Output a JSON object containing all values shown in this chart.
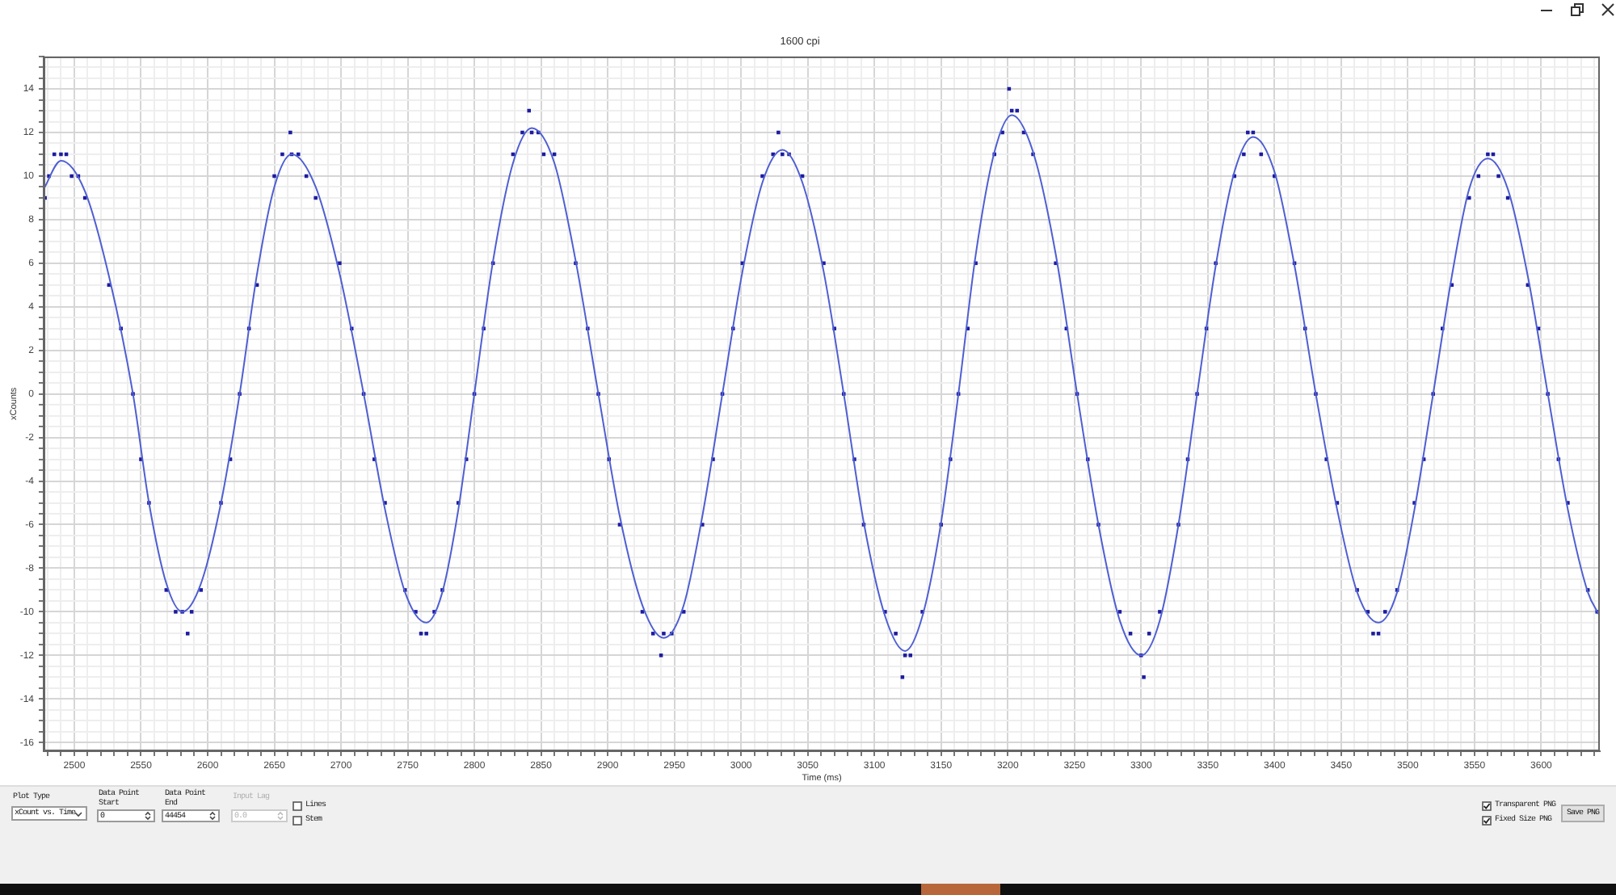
{
  "chart_data": {
    "type": "scatter",
    "subtitle": "1600 cpi",
    "xlabel": "Time (ms)",
    "ylabel": "xCounts",
    "annotations": [
      "Plot Type",
      "xCount vs. Time",
      "Data Point Start",
      "0",
      "Data Point End",
      "44454",
      "Input Lag",
      "0.0",
      "Lines",
      "Stem",
      "Transparent PNG",
      "Fixed Size PNG",
      "Save PNG"
    ],
    "xlim": [
      2477,
      3644
    ],
    "ylim": [
      -16.4,
      15.5
    ],
    "xticks": [
      {
        "value": 2480,
        "label": null
      },
      {
        "value": 2490,
        "label": null
      },
      2500,
      {
        "value": 2510,
        "label": null
      },
      {
        "value": 2520,
        "label": null
      },
      {
        "value": 2530,
        "label": null
      },
      {
        "value": 2540,
        "label": null
      },
      2550,
      {
        "value": 2560,
        "label": null
      },
      {
        "value": 2570,
        "label": null
      },
      {
        "value": 2580,
        "label": null
      },
      {
        "value": 2590,
        "label": null
      },
      2600,
      {
        "value": 2610,
        "label": null
      },
      {
        "value": 2620,
        "label": null
      },
      {
        "value": 2630,
        "label": null
      },
      {
        "value": 2640,
        "label": null
      },
      2650,
      {
        "value": 2660,
        "label": null
      },
      {
        "value": 2670,
        "label": null
      },
      {
        "value": 2680,
        "label": null
      },
      {
        "value": 2690,
        "label": null
      },
      2700,
      {
        "value": 2710,
        "label": null
      },
      {
        "value": 2720,
        "label": null
      },
      {
        "value": 2730,
        "label": null
      },
      {
        "value": 2740,
        "label": null
      },
      2750,
      {
        "value": 2760,
        "label": null
      },
      {
        "value": 2770,
        "label": null
      },
      {
        "value": 2780,
        "label": null
      },
      {
        "value": 2790,
        "label": null
      },
      2800,
      {
        "value": 2810,
        "label": null
      },
      {
        "value": 2820,
        "label": null
      },
      {
        "value": 2830,
        "label": null
      },
      {
        "value": 2840,
        "label": null
      },
      2850,
      {
        "value": 2860,
        "label": null
      },
      {
        "value": 2870,
        "label": null
      },
      {
        "value": 2880,
        "label": null
      },
      {
        "value": 2890,
        "label": null
      },
      2900,
      {
        "value": 2910,
        "label": null
      },
      {
        "value": 2920,
        "label": null
      },
      {
        "value": 2930,
        "label": null
      },
      {
        "value": 2940,
        "label": null
      },
      2950,
      {
        "value": 2960,
        "label": null
      },
      {
        "value": 2970,
        "label": null
      },
      {
        "value": 2980,
        "label": null
      },
      {
        "value": 2990,
        "label": null
      },
      3000,
      {
        "value": 3010,
        "label": null
      },
      {
        "value": 3020,
        "label": null
      },
      {
        "value": 3030,
        "label": null
      },
      {
        "value": 3040,
        "label": null
      },
      3050,
      {
        "value": 3060,
        "label": null
      },
      {
        "value": 3070,
        "label": null
      },
      {
        "value": 3080,
        "label": null
      },
      {
        "value": 3090,
        "label": null
      },
      3100,
      {
        "value": 3110,
        "label": null
      },
      {
        "value": 3120,
        "label": null
      },
      {
        "value": 3130,
        "label": null
      },
      {
        "value": 3140,
        "label": null
      },
      3150,
      {
        "value": 3160,
        "label": null
      },
      {
        "value": 3170,
        "label": null
      },
      {
        "value": 3180,
        "label": null
      },
      {
        "value": 3190,
        "label": null
      },
      3200,
      {
        "value": 3210,
        "label": null
      },
      {
        "value": 3220,
        "label": null
      },
      {
        "value": 3230,
        "label": null
      },
      {
        "value": 3240,
        "label": null
      },
      3250,
      {
        "value": 3260,
        "label": null
      },
      {
        "value": 3270,
        "label": null
      },
      {
        "value": 3280,
        "label": null
      },
      {
        "value": 3290,
        "label": null
      },
      3300,
      {
        "value": 3310,
        "label": null
      },
      {
        "value": 3320,
        "label": null
      },
      {
        "value": 3330,
        "label": null
      },
      {
        "value": 3340,
        "label": null
      },
      3350,
      {
        "value": 3360,
        "label": null
      },
      {
        "value": 3370,
        "label": null
      },
      {
        "value": 3380,
        "label": null
      },
      {
        "value": 3390,
        "label": null
      },
      3400,
      {
        "value": 3410,
        "label": null
      },
      {
        "value": 3420,
        "label": null
      },
      {
        "value": 3430,
        "label": null
      },
      {
        "value": 3440,
        "label": null
      },
      3450,
      {
        "value": 3460,
        "label": null
      },
      {
        "value": 3470,
        "label": null
      },
      {
        "value": 3480,
        "label": null
      },
      {
        "value": 3490,
        "label": null
      },
      3500,
      {
        "value": 3510,
        "label": null
      },
      {
        "value": 3520,
        "label": null
      },
      {
        "value": 3530,
        "label": null
      },
      {
        "value": 3540,
        "label": null
      },
      3550,
      {
        "value": 3560,
        "label": null
      },
      {
        "value": 3570,
        "label": null
      },
      {
        "value": 3580,
        "label": null
      },
      {
        "value": 3590,
        "label": null
      },
      3600,
      {
        "value": 3610,
        "label": null
      },
      {
        "value": 3620,
        "label": null
      },
      {
        "value": 3630,
        "label": null
      },
      {
        "value": 3640,
        "label": null
      }
    ],
    "yticks": [
      -16,
      {
        "value": -15.5,
        "label": null
      },
      {
        "value": -15,
        "label": null
      },
      {
        "value": -14.5,
        "label": null
      },
      -14,
      {
        "value": -13.5,
        "label": null
      },
      {
        "value": -13,
        "label": null
      },
      {
        "value": -12.5,
        "label": null
      },
      -12,
      {
        "value": -11.5,
        "label": null
      },
      {
        "value": -11,
        "label": null
      },
      {
        "value": -10.5,
        "label": null
      },
      -10,
      {
        "value": -9.5,
        "label": null
      },
      {
        "value": -9,
        "label": null
      },
      {
        "value": -8.5,
        "label": null
      },
      -8,
      {
        "value": -7.5,
        "label": null
      },
      {
        "value": -7,
        "label": null
      },
      {
        "value": -6.5,
        "label": null
      },
      -6,
      {
        "value": -5.5,
        "label": null
      },
      {
        "value": -5,
        "label": null
      },
      {
        "value": -4.5,
        "label": null
      },
      -4,
      {
        "value": -3.5,
        "label": null
      },
      {
        "value": -3,
        "label": null
      },
      {
        "value": -2.5,
        "label": null
      },
      -2,
      {
        "value": -1.5,
        "label": null
      },
      {
        "value": -1,
        "label": null
      },
      {
        "value": -0.5,
        "label": null
      },
      0,
      {
        "value": 0.5,
        "label": null
      },
      {
        "value": 1,
        "label": null
      },
      {
        "value": 1.5,
        "label": null
      },
      2,
      {
        "value": 2.5,
        "label": null
      },
      {
        "value": 3,
        "label": null
      },
      {
        "value": 3.5,
        "label": null
      },
      4,
      {
        "value": 4.5,
        "label": null
      },
      {
        "value": 5,
        "label": null
      },
      {
        "value": 5.5,
        "label": null
      },
      6,
      {
        "value": 6.5,
        "label": null
      },
      {
        "value": 7,
        "label": null
      },
      {
        "value": 7.5,
        "label": null
      },
      8,
      {
        "value": 8.5,
        "label": null
      },
      {
        "value": 9,
        "label": null
      },
      {
        "value": 9.5,
        "label": null
      },
      10,
      {
        "value": 10.5,
        "label": null
      },
      {
        "value": 11,
        "label": null
      },
      {
        "value": 11.5,
        "label": null
      },
      12,
      {
        "value": 12.5,
        "label": null
      },
      {
        "value": 13,
        "label": null
      },
      {
        "value": 13.5,
        "label": null
      },
      14,
      {
        "value": 14.5,
        "label": null
      },
      {
        "value": 15,
        "label": null
      },
      {
        "value": 15.5,
        "label": null
      }
    ],
    "grid": true,
    "marker": "square",
    "series": [
      {
        "color": "#1c1ca0",
        "x": [
          2478,
          2481,
          2485,
          2490,
          2494,
          2498,
          2503,
          2508,
          2526,
          2535,
          2544,
          2550,
          2556,
          2569,
          2576,
          2581,
          2585,
          2588,
          2595,
          2610,
          2617,
          2624,
          2631,
          2637,
          2650,
          2656,
          2662,
          2663,
          2668,
          2674,
          2681,
          2699,
          2708,
          2717,
          2725,
          2733,
          2748,
          2756,
          2760,
          2764,
          2770,
          2776,
          2788,
          2794,
          2800,
          2807,
          2814,
          2829,
          2836,
          2841,
          2843,
          2848,
          2852,
          2860,
          2876,
          2885,
          2893,
          2901,
          2909,
          2926,
          2934,
          2940,
          2942,
          2948,
          2957,
          2971,
          2979,
          2986,
          2994,
          3001,
          3016,
          3024,
          3028,
          3031,
          3036,
          3046,
          3062,
          3070,
          3077,
          3085,
          3092,
          3108,
          3116,
          3121,
          3123,
          3127,
          3136,
          3150,
          3157,
          3163,
          3170,
          3176,
          3190,
          3196,
          3201,
          3203,
          3207,
          3212,
          3219,
          3236,
          3244,
          3252,
          3260,
          3268,
          3284,
          3292,
          3300,
          3302,
          3306,
          3314,
          3328,
          3335,
          3342,
          3349,
          3356,
          3370,
          3377,
          3380,
          3384,
          3390,
          3400,
          3415,
          3423,
          3431,
          3439,
          3447,
          3462,
          3470,
          3474,
          3478,
          3483,
          3492,
          3505,
          3512,
          3519,
          3526,
          3533,
          3546,
          3553,
          3560,
          3564,
          3568,
          3575,
          3590,
          3598,
          3605,
          3613,
          3620,
          3635,
          3642
        ],
        "values": [
          9,
          10,
          11,
          11,
          11,
          10,
          10,
          9,
          5,
          3,
          0,
          -3,
          -5,
          -9,
          -10,
          -10,
          -11,
          -10,
          -9,
          -5,
          -3,
          0,
          3,
          5,
          10,
          11,
          12,
          11,
          11,
          10,
          9,
          6,
          3,
          0,
          -3,
          -5,
          -9,
          -10,
          -11,
          -11,
          -10,
          -9,
          -5,
          -3,
          0,
          3,
          6,
          11,
          12,
          13,
          12,
          12,
          11,
          11,
          6,
          3,
          0,
          -3,
          -6,
          -10,
          -11,
          -12,
          -11,
          -11,
          -10,
          -6,
          -3,
          0,
          3,
          6,
          10,
          11,
          12,
          11,
          11,
          10,
          6,
          3,
          0,
          -3,
          -6,
          -10,
          -11,
          -13,
          -12,
          -12,
          -10,
          -6,
          -3,
          0,
          3,
          6,
          11,
          12,
          14,
          13,
          13,
          12,
          11,
          6,
          3,
          0,
          -3,
          -6,
          -10,
          -11,
          -12,
          -13,
          -11,
          -10,
          -6,
          -3,
          0,
          3,
          6,
          10,
          11,
          12,
          12,
          11,
          10,
          6,
          3,
          0,
          -3,
          -5,
          -9,
          -10,
          -11,
          -11,
          -10,
          -9,
          -5,
          -3,
          0,
          3,
          5,
          9,
          10,
          11,
          11,
          10,
          9,
          5,
          3,
          0,
          -3,
          -5,
          -9,
          -10
        ]
      },
      {
        "type": "line",
        "color": "#4f5fd2",
        "marker": "none",
        "x": [
          2477,
          2490,
          2508,
          2526,
          2544,
          2556,
          2569,
          2581,
          2595,
          2610,
          2624,
          2637,
          2650,
          2663,
          2681,
          2699,
          2717,
          2733,
          2748,
          2764,
          2776,
          2788,
          2800,
          2814,
          2829,
          2843,
          2860,
          2876,
          2893,
          2909,
          2926,
          2942,
          2957,
          2971,
          2986,
          3001,
          3016,
          3031,
          3046,
          3062,
          3077,
          3092,
          3108,
          3123,
          3136,
          3150,
          3163,
          3176,
          3190,
          3203,
          3219,
          3236,
          3252,
          3268,
          3284,
          3300,
          3314,
          3328,
          3342,
          3356,
          3370,
          3384,
          3400,
          3415,
          3431,
          3447,
          3462,
          3478,
          3492,
          3505,
          3519,
          3533,
          3546,
          3560,
          3575,
          3590,
          3605,
          3620,
          3635,
          3644
        ],
        "values": [
          9.4,
          10.7,
          9.3,
          5.4,
          0,
          -5.0,
          -8.7,
          -10.0,
          -8.7,
          -5.0,
          0,
          5.5,
          9.5,
          11.0,
          9.5,
          5.5,
          0,
          -5.3,
          -9.1,
          -10.5,
          -9.1,
          -5.3,
          0,
          6.1,
          10.6,
          12.2,
          10.6,
          6.1,
          0,
          -5.6,
          -9.7,
          -11.2,
          -9.7,
          -5.6,
          0,
          5.6,
          9.7,
          11.2,
          9.7,
          5.6,
          0,
          -5.9,
          -10.2,
          -11.8,
          -10.2,
          -5.9,
          0,
          6.4,
          11.1,
          12.8,
          11.1,
          6.4,
          0,
          -6.0,
          -10.4,
          -12.0,
          -10.4,
          -6.0,
          0,
          5.9,
          10.2,
          11.8,
          10.2,
          5.9,
          0,
          -5.3,
          -9.1,
          -10.5,
          -9.1,
          -5.3,
          0,
          5.4,
          9.4,
          10.8,
          9.4,
          5.4,
          0,
          -5.3,
          -9.1,
          -10.2
        ]
      }
    ]
  }
}
